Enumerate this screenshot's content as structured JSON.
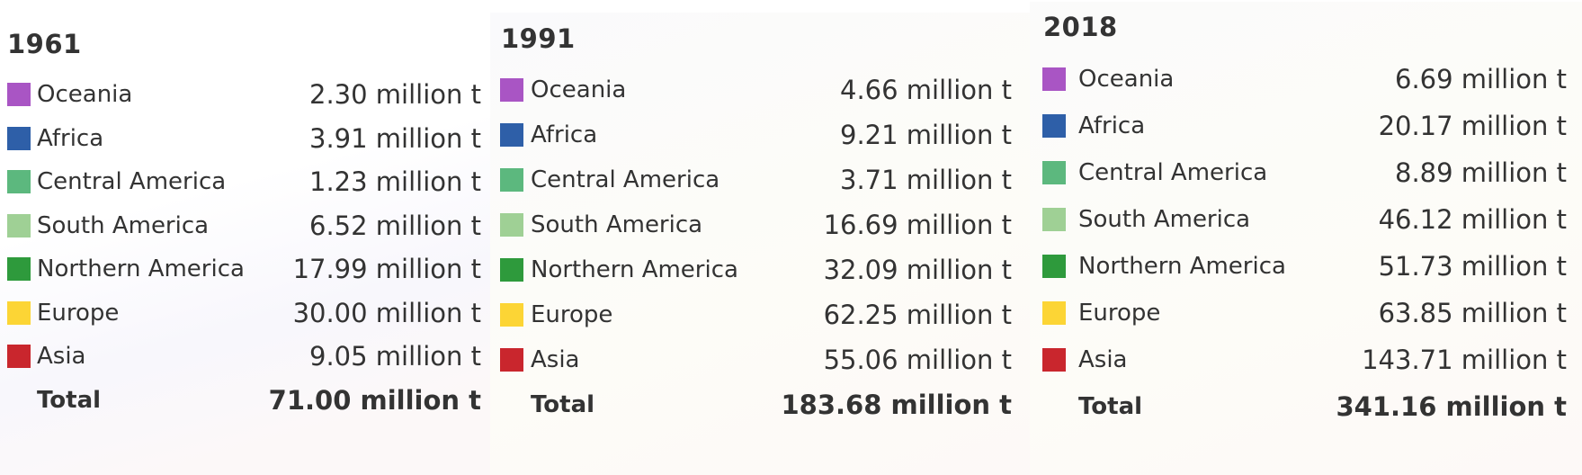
{
  "chart_data": {
    "type": "table",
    "unit": "million t",
    "regions": [
      "Oceania",
      "Africa",
      "Central America",
      "South America",
      "Northern America",
      "Europe",
      "Asia"
    ],
    "colors": {
      "Oceania": "#a955c4",
      "Africa": "#2e5fa8",
      "Central America": "#5cb87e",
      "South America": "#9fd095",
      "Northern America": "#2e9a3c",
      "Europe": "#fcd535",
      "Asia": "#c9262d"
    },
    "total_label": "Total",
    "panels": [
      {
        "year": "1961",
        "rows": [
          {
            "region": "Oceania",
            "value": 2.3,
            "value_text": "2.30 million t"
          },
          {
            "region": "Africa",
            "value": 3.91,
            "value_text": "3.91 million t"
          },
          {
            "region": "Central America",
            "value": 1.23,
            "value_text": "1.23 million t"
          },
          {
            "region": "South America",
            "value": 6.52,
            "value_text": "6.52 million t"
          },
          {
            "region": "Northern America",
            "value": 17.99,
            "value_text": "17.99 million t"
          },
          {
            "region": "Europe",
            "value": 30.0,
            "value_text": "30.00 million t"
          },
          {
            "region": "Asia",
            "value": 9.05,
            "value_text": "9.05 million t"
          }
        ],
        "total": 71.0,
        "total_text": "71.00 million t"
      },
      {
        "year": "1991",
        "rows": [
          {
            "region": "Oceania",
            "value": 4.66,
            "value_text": "4.66 million t"
          },
          {
            "region": "Africa",
            "value": 9.21,
            "value_text": "9.21 million t"
          },
          {
            "region": "Central America",
            "value": 3.71,
            "value_text": "3.71 million t"
          },
          {
            "region": "South America",
            "value": 16.69,
            "value_text": "16.69 million t"
          },
          {
            "region": "Northern America",
            "value": 32.09,
            "value_text": "32.09 million t"
          },
          {
            "region": "Europe",
            "value": 62.25,
            "value_text": "62.25 million t"
          },
          {
            "region": "Asia",
            "value": 55.06,
            "value_text": "55.06 million t"
          }
        ],
        "total": 183.68,
        "total_text": "183.68 million t"
      },
      {
        "year": "2018",
        "rows": [
          {
            "region": "Oceania",
            "value": 6.69,
            "value_text": "6.69 million t"
          },
          {
            "region": "Africa",
            "value": 20.17,
            "value_text": "20.17 million t"
          },
          {
            "region": "Central America",
            "value": 8.89,
            "value_text": "8.89 million t"
          },
          {
            "region": "South America",
            "value": 46.12,
            "value_text": "46.12 million t"
          },
          {
            "region": "Northern America",
            "value": 51.73,
            "value_text": "51.73 million t"
          },
          {
            "region": "Europe",
            "value": 63.85,
            "value_text": "63.85 million t"
          },
          {
            "region": "Asia",
            "value": 143.71,
            "value_text": "143.71 million t"
          }
        ],
        "total": 341.16,
        "total_text": "341.16 million t"
      }
    ]
  }
}
